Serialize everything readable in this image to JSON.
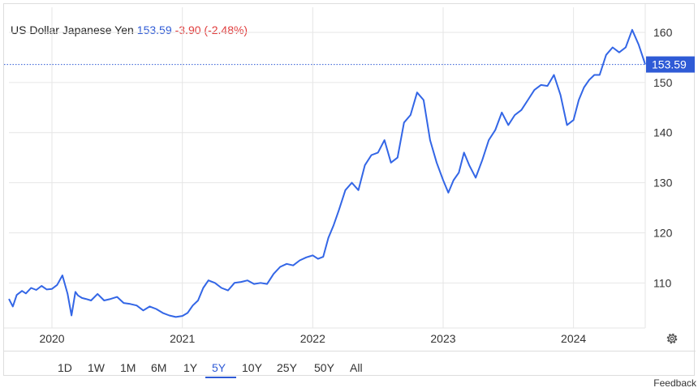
{
  "header": {
    "symbol": "US Dollar Japanese Yen",
    "price": "153.59",
    "change": "-3.90 (-2.48%)"
  },
  "current_price_label": "153.59",
  "ranges": [
    "1D",
    "1W",
    "1M",
    "6M",
    "1Y",
    "5Y",
    "10Y",
    "25Y",
    "50Y",
    "All"
  ],
  "active_range": "5Y",
  "feedback": "Feedback",
  "colors": {
    "line": "#3366e6",
    "up": "#2f5bd6",
    "down": "#e03c3c",
    "grid": "#e6e6e6"
  },
  "icons": {
    "settings": "gear-icon"
  },
  "chart_data": {
    "type": "line",
    "title": "US Dollar Japanese Yen",
    "xlabel": "",
    "ylabel": "",
    "xlim": [
      2019.67,
      2024.55
    ],
    "ylim": [
      101,
      165
    ],
    "x_ticks": [
      2020,
      2021,
      2022,
      2023,
      2024
    ],
    "x_tick_labels": [
      "2020",
      "2021",
      "2022",
      "2023",
      "2024"
    ],
    "y_ticks": [
      110,
      120,
      130,
      140,
      150,
      160
    ],
    "y_tick_labels": [
      "110",
      "120",
      "130",
      "140",
      "150",
      "160"
    ],
    "grid": true,
    "current_price": 153.59,
    "series": [
      {
        "name": "",
        "x": [
          2019.67,
          2019.7,
          2019.73,
          2019.77,
          2019.8,
          2019.84,
          2019.88,
          2019.92,
          2019.96,
          2020.0,
          2020.04,
          2020.08,
          2020.12,
          2020.15,
          2020.18,
          2020.2,
          2020.23,
          2020.26,
          2020.3,
          2020.35,
          2020.4,
          2020.45,
          2020.5,
          2020.55,
          2020.6,
          2020.65,
          2020.7,
          2020.75,
          2020.8,
          2020.85,
          2020.9,
          2020.95,
          2021.0,
          2021.04,
          2021.08,
          2021.12,
          2021.16,
          2021.2,
          2021.25,
          2021.3,
          2021.35,
          2021.4,
          2021.45,
          2021.5,
          2021.55,
          2021.6,
          2021.65,
          2021.7,
          2021.75,
          2021.8,
          2021.85,
          2021.9,
          2021.95,
          2022.0,
          2022.04,
          2022.08,
          2022.12,
          2022.16,
          2022.2,
          2022.25,
          2022.3,
          2022.35,
          2022.4,
          2022.45,
          2022.5,
          2022.55,
          2022.6,
          2022.65,
          2022.7,
          2022.75,
          2022.8,
          2022.85,
          2022.9,
          2022.95,
          2023.0,
          2023.04,
          2023.08,
          2023.12,
          2023.16,
          2023.2,
          2023.25,
          2023.3,
          2023.35,
          2023.4,
          2023.45,
          2023.5,
          2023.55,
          2023.6,
          2023.65,
          2023.7,
          2023.75,
          2023.8,
          2023.85,
          2023.9,
          2023.95,
          2024.0,
          2024.04,
          2024.08,
          2024.12,
          2024.16,
          2024.2,
          2024.25,
          2024.3,
          2024.35,
          2024.4,
          2024.45,
          2024.5,
          2024.55
        ],
        "y": [
          106.8,
          105.3,
          107.6,
          108.4,
          107.9,
          109.0,
          108.6,
          109.4,
          108.7,
          108.8,
          109.6,
          111.5,
          107.8,
          103.5,
          108.2,
          107.5,
          107.0,
          106.8,
          106.5,
          107.8,
          106.5,
          106.8,
          107.2,
          106.0,
          105.8,
          105.5,
          104.5,
          105.3,
          104.8,
          104.0,
          103.5,
          103.2,
          103.4,
          104.0,
          105.5,
          106.5,
          109.0,
          110.5,
          110.0,
          109.0,
          108.5,
          110.0,
          110.2,
          110.5,
          109.8,
          110.0,
          109.8,
          111.8,
          113.2,
          113.8,
          113.5,
          114.5,
          115.1,
          115.5,
          114.8,
          115.2,
          119.0,
          121.5,
          124.5,
          128.5,
          130.0,
          128.5,
          133.5,
          135.5,
          136.0,
          138.5,
          134.0,
          135.0,
          142.0,
          143.5,
          148.0,
          146.5,
          138.5,
          134.0,
          130.5,
          128.0,
          130.5,
          132.0,
          136.0,
          133.5,
          131.0,
          134.5,
          138.5,
          140.5,
          144.0,
          141.5,
          143.5,
          144.5,
          146.5,
          148.5,
          149.5,
          149.3,
          151.5,
          147.5,
          141.5,
          142.5,
          146.5,
          149.0,
          150.5,
          151.5,
          151.5,
          155.5,
          157.0,
          156.0,
          157.0,
          160.5,
          157.5,
          153.59
        ]
      }
    ]
  }
}
